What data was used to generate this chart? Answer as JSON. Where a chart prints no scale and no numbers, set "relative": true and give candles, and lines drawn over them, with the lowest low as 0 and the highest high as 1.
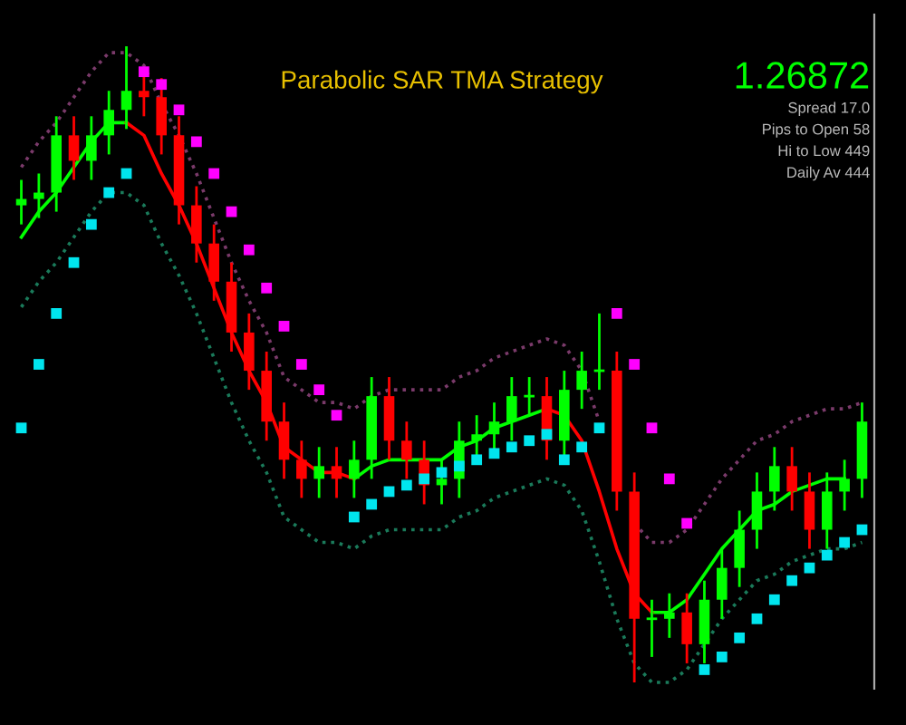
{
  "chart_data": {
    "type": "candlestick",
    "title": "Parabolic SAR TMA Strategy",
    "relative": true,
    "grid": false,
    "legend": false,
    "categories": [
      null,
      null,
      null,
      null,
      null,
      null,
      null,
      null,
      null,
      null,
      null,
      null,
      null,
      null,
      null,
      null,
      null,
      null,
      null,
      null,
      null,
      null,
      null,
      null,
      null,
      null,
      null,
      null,
      null,
      null,
      null,
      null,
      null,
      null,
      null,
      null,
      null,
      null,
      null,
      null,
      null,
      null,
      null,
      null,
      null,
      null,
      null,
      null,
      null
    ],
    "ohlc": [
      [
        0.75,
        0.79,
        0.72,
        0.76
      ],
      [
        0.76,
        0.8,
        0.73,
        0.77
      ],
      [
        0.77,
        0.89,
        0.74,
        0.86
      ],
      [
        0.86,
        0.89,
        0.79,
        0.82
      ],
      [
        0.82,
        0.89,
        0.79,
        0.86
      ],
      [
        0.86,
        0.93,
        0.83,
        0.9
      ],
      [
        0.9,
        1,
        0.87,
        0.93
      ],
      [
        0.93,
        0.96,
        0.89,
        0.92
      ],
      [
        0.92,
        0.95,
        0.83,
        0.86
      ],
      [
        0.86,
        0.89,
        0.72,
        0.75
      ],
      [
        0.75,
        0.78,
        0.66,
        0.69
      ],
      [
        0.69,
        0.72,
        0.6,
        0.63
      ],
      [
        0.63,
        0.66,
        0.52,
        0.55
      ],
      [
        0.55,
        0.58,
        0.46,
        0.49
      ],
      [
        0.49,
        0.52,
        0.38,
        0.41
      ],
      [
        0.41,
        0.44,
        0.32,
        0.35
      ],
      [
        0.35,
        0.38,
        0.29,
        0.32
      ],
      [
        0.32,
        0.37,
        0.29,
        0.34
      ],
      [
        0.34,
        0.37,
        0.29,
        0.32
      ],
      [
        0.32,
        0.38,
        0.29,
        0.35
      ],
      [
        0.35,
        0.48,
        0.32,
        0.45
      ],
      [
        0.45,
        0.48,
        0.35,
        0.38
      ],
      [
        0.38,
        0.41,
        0.32,
        0.35
      ],
      [
        0.35,
        0.38,
        0.28,
        0.31
      ],
      [
        0.31,
        0.35,
        0.28,
        0.32
      ],
      [
        0.32,
        0.41,
        0.29,
        0.38
      ],
      [
        0.38,
        0.42,
        0.35,
        0.39
      ],
      [
        0.39,
        0.44,
        0.36,
        0.41
      ],
      [
        0.41,
        0.48,
        0.38,
        0.45
      ],
      [
        0.45,
        0.48,
        0.42,
        0.45
      ],
      [
        0.45,
        0.48,
        0.35,
        0.38
      ],
      [
        0.38,
        0.49,
        0.35,
        0.46
      ],
      [
        0.46,
        0.52,
        0.43,
        0.49
      ],
      [
        0.49,
        0.58,
        0.46,
        0.49
      ],
      [
        0.49,
        0.52,
        0.27,
        0.3
      ],
      [
        0.3,
        0.33,
        0,
        0.1
      ],
      [
        0.1,
        0.13,
        0.04,
        0.1
      ],
      [
        0.1,
        0.14,
        0.07,
        0.11
      ],
      [
        0.11,
        0.14,
        0.03,
        0.06
      ],
      [
        0.06,
        0.16,
        0.03,
        0.13
      ],
      [
        0.13,
        0.21,
        0.1,
        0.18
      ],
      [
        0.18,
        0.27,
        0.15,
        0.24
      ],
      [
        0.24,
        0.33,
        0.21,
        0.3
      ],
      [
        0.3,
        0.37,
        0.27,
        0.34
      ],
      [
        0.34,
        0.37,
        0.27,
        0.3
      ],
      [
        0.3,
        0.33,
        0.21,
        0.24
      ],
      [
        0.24,
        0.33,
        0.21,
        0.3
      ],
      [
        0.3,
        0.35,
        0.27,
        0.32
      ],
      [
        0.32,
        0.44,
        0.29,
        0.41
      ]
    ],
    "colors": [
      "#00ff00",
      "#00ff00",
      "#00ff00",
      "#ff0000",
      "#00ff00",
      "#00ff00",
      "#00ff00",
      "#ff0000",
      "#ff0000",
      "#ff0000",
      "#ff0000",
      "#ff0000",
      "#ff0000",
      "#ff0000",
      "#ff0000",
      "#ff0000",
      "#ff0000",
      "#00ff00",
      "#ff0000",
      "#00ff00",
      "#00ff00",
      "#ff0000",
      "#ff0000",
      "#ff0000",
      "#00ff00",
      "#00ff00",
      "#00ff00",
      "#00ff00",
      "#00ff00",
      "#00ff00",
      "#ff0000",
      "#00ff00",
      "#00ff00",
      "#00ff00",
      "#ff0000",
      "#ff0000",
      "#00ff00",
      "#00ff00",
      "#ff0000",
      "#00ff00",
      "#00ff00",
      "#00ff00",
      "#00ff00",
      "#00ff00",
      "#ff0000",
      "#ff0000",
      "#00ff00",
      "#00ff00",
      "#00ff00"
    ],
    "series": [
      {
        "type": "line",
        "color": "#7a3a6a",
        "line_style": "dotted",
        "values": [
          0.81,
          0.85,
          0.88,
          0.92,
          0.96,
          0.99,
          0.99,
          0.97,
          0.91,
          0.86,
          0.8,
          0.73,
          0.66,
          0.6,
          0.55,
          0.48,
          0.46,
          0.44,
          0.44,
          0.43,
          0.45,
          0.46,
          0.46,
          0.46,
          0.46,
          0.48,
          0.49,
          0.51,
          0.52,
          0.53,
          0.54,
          0.53,
          0.49,
          0.41,
          null,
          0.25,
          0.22,
          0.22,
          0.24,
          0.28,
          0.32,
          0.35,
          0.38,
          0.39,
          0.41,
          0.42,
          0.43,
          0.43,
          0.44
        ]
      },
      {
        "type": "line",
        "color": "#1a7a5a",
        "line_style": "dotted",
        "values": [
          0.59,
          0.63,
          0.66,
          0.7,
          0.74,
          0.77,
          0.77,
          0.75,
          0.69,
          0.64,
          0.58,
          0.51,
          0.44,
          0.38,
          0.33,
          0.26,
          0.24,
          0.22,
          0.22,
          0.21,
          0.23,
          0.24,
          0.24,
          0.24,
          0.24,
          0.26,
          0.27,
          0.29,
          0.3,
          0.31,
          0.32,
          0.31,
          0.27,
          0.19,
          0.1,
          0.03,
          0.0,
          0.0,
          0.02,
          0.06,
          0.1,
          0.13,
          0.16,
          0.17,
          0.19,
          0.2,
          0.21,
          0.21,
          0.22
        ]
      },
      {
        "type": "line",
        "color": "#00ff00",
        "line_style": "solid",
        "values": [
          0.7,
          0.74,
          0.77,
          0.81,
          0.85,
          0.88,
          0.88,
          null,
          null,
          null,
          null,
          null,
          null,
          null,
          null,
          null,
          null,
          null,
          null,
          0.32,
          0.34,
          0.35,
          0.35,
          0.35,
          0.35,
          0.37,
          0.38,
          0.4,
          0.41,
          0.42,
          0.43,
          null,
          null,
          null,
          null,
          null,
          0.11,
          0.11,
          0.13,
          0.17,
          0.21,
          0.24,
          0.27,
          0.28,
          0.3,
          0.31,
          0.32,
          0.32,
          null
        ]
      },
      {
        "type": "line",
        "color": "#ff0000",
        "line_style": "solid",
        "values": [
          null,
          null,
          null,
          null,
          null,
          null,
          0.88,
          0.86,
          0.8,
          0.75,
          0.69,
          0.62,
          0.55,
          0.49,
          0.44,
          0.37,
          0.35,
          0.33,
          0.33,
          0.32,
          null,
          null,
          null,
          null,
          null,
          null,
          null,
          null,
          null,
          null,
          0.43,
          0.42,
          0.38,
          0.3,
          0.21,
          0.14,
          0.11,
          null,
          null,
          null,
          null,
          null,
          null,
          null,
          null,
          null,
          null,
          null,
          null
        ]
      },
      {
        "type": "scatter",
        "color": "#00e5ee",
        "marker": "square",
        "values": [
          0.4,
          0.5,
          0.58,
          0.66,
          0.72,
          0.77,
          0.8,
          null,
          null,
          null,
          null,
          null,
          null,
          null,
          null,
          null,
          null,
          null,
          null,
          0.26,
          0.28,
          0.3,
          0.31,
          0.32,
          0.33,
          0.34,
          0.35,
          0.36,
          0.37,
          0.38,
          0.39,
          0.35,
          0.37,
          0.4,
          null,
          null,
          null,
          null,
          null,
          0.02,
          0.04,
          0.07,
          0.1,
          0.13,
          0.16,
          0.18,
          0.2,
          0.22,
          0.24
        ]
      },
      {
        "type": "scatter",
        "color": "#ff00ff",
        "marker": "square",
        "values": [
          null,
          null,
          null,
          null,
          null,
          null,
          null,
          0.96,
          0.94,
          0.9,
          0.85,
          0.8,
          0.74,
          0.68,
          0.62,
          0.56,
          0.5,
          0.46,
          0.42,
          null,
          null,
          null,
          null,
          null,
          null,
          null,
          null,
          null,
          null,
          null,
          null,
          null,
          null,
          null,
          0.58,
          0.5,
          0.4,
          0.32,
          0.25,
          null,
          null,
          null,
          null,
          null,
          null,
          null,
          null,
          null,
          null
        ]
      }
    ],
    "annotations": [
      "1.26872",
      "Spread 17.0",
      "Pips to Open 58",
      "Hi to Low 449",
      "Daily Av 444"
    ]
  }
}
